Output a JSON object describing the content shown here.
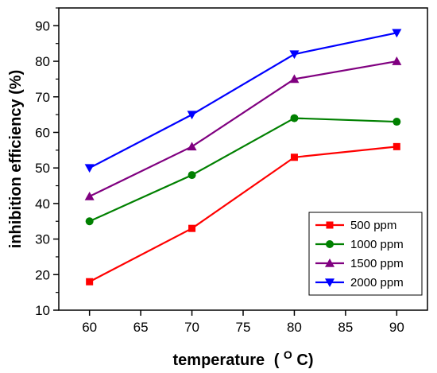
{
  "chart_data": {
    "type": "line",
    "x": [
      60,
      70,
      80,
      90
    ],
    "xlabel": "temperature",
    "xlabel_unit_prefix": "(",
    "xlabel_unit_sup": "O",
    "xlabel_unit_suffix": "C)",
    "ylabel": "inhibition efficiency (%)",
    "xlim": [
      57,
      93
    ],
    "ylim": [
      10,
      95
    ],
    "xticks": [
      60,
      65,
      70,
      75,
      80,
      85,
      90
    ],
    "yticks": [
      10,
      20,
      30,
      40,
      50,
      60,
      70,
      80,
      90
    ],
    "grid": false,
    "legend_position": "bottom-right",
    "series": [
      {
        "name": "500 ppm",
        "values": [
          18,
          33,
          53,
          56
        ],
        "color": "#ff0000",
        "marker": "square"
      },
      {
        "name": "1000 ppm",
        "values": [
          35,
          48,
          64,
          63
        ],
        "color": "#008000",
        "marker": "circle"
      },
      {
        "name": "1500 ppm",
        "values": [
          42,
          56,
          75,
          80
        ],
        "color": "#800080",
        "marker": "triangle-up"
      },
      {
        "name": "2000 ppm",
        "values": [
          50,
          65,
          82,
          88
        ],
        "color": "#0000ff",
        "marker": "triangle-down"
      }
    ]
  }
}
